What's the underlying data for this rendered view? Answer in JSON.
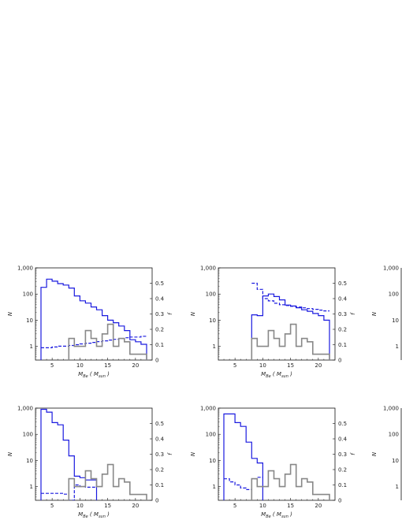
{
  "chart_data": [
    {
      "type": "step",
      "panel": "top-left",
      "xlabel": "M_Be ( M_sun )",
      "ylabel_left": "N",
      "ylabel_right": "f",
      "x_ticks": [
        "5",
        "10",
        "15",
        "20"
      ],
      "y_left_ticks": [
        "1",
        "10",
        "100",
        "1,000"
      ],
      "y_right_ticks": [
        "0",
        "0.1",
        "0.2",
        "0.3",
        "0.4",
        "0.5"
      ],
      "xlim": [
        2,
        23
      ],
      "ylim_left": [
        0.3,
        1000
      ],
      "ylim_right": [
        0,
        0.6
      ],
      "y_left_scale": "log",
      "bin_edges": [
        3,
        4,
        5,
        6,
        7,
        8,
        9,
        10,
        11,
        12,
        13,
        14,
        15,
        16,
        17,
        18,
        19,
        20,
        21,
        22
      ],
      "series": [
        {
          "style": "solid",
          "color": "#1a1adf",
          "axis": "left",
          "values": [
            180,
            370,
            310,
            250,
            220,
            170,
            85,
            55,
            45,
            32,
            25,
            15,
            10,
            8,
            6,
            4,
            1.8,
            1.5,
            1.2
          ]
        },
        {
          "style": "dashed",
          "color": "#1a1adf",
          "axis": "right",
          "values": [
            0.08,
            0.08,
            0.085,
            0.09,
            0.09,
            0.095,
            0.1,
            0.105,
            0.11,
            0.115,
            0.12,
            0.125,
            0.13,
            0.135,
            0.14,
            0.145,
            0.15,
            0.15,
            0.155
          ]
        },
        {
          "style": "solid",
          "color": "#888888",
          "axis": "left",
          "values": [
            null,
            null,
            null,
            null,
            null,
            2,
            1,
            1,
            4,
            2,
            1,
            3,
            7,
            1,
            2,
            1.5,
            0.5,
            0.5,
            0.5
          ]
        }
      ]
    },
    {
      "type": "step",
      "panel": "top-middle",
      "xlabel": "M_Be ( M_sun )",
      "ylabel_left": "N",
      "ylabel_right": "f",
      "x_ticks": [
        "5",
        "10",
        "15",
        "20"
      ],
      "y_left_ticks": [
        "1",
        "10",
        "100",
        "1,000"
      ],
      "y_right_ticks": [
        "0",
        "0.1",
        "0.2",
        "0.3",
        "0.4",
        "0.5"
      ],
      "xlim": [
        2,
        23
      ],
      "ylim_left": [
        0.3,
        1000
      ],
      "ylim_right": [
        0,
        0.6
      ],
      "y_left_scale": "log",
      "bin_edges": [
        8,
        9,
        10,
        11,
        12,
        13,
        14,
        15,
        16,
        17,
        18,
        19,
        20,
        21,
        22
      ],
      "series": [
        {
          "style": "solid",
          "color": "#1a1adf",
          "axis": "left",
          "values": [
            16,
            15,
            85,
            100,
            80,
            60,
            38,
            35,
            30,
            25,
            22,
            18,
            15,
            10
          ]
        },
        {
          "style": "dashed",
          "color": "#1a1adf",
          "axis": "right",
          "values": [
            0.5,
            0.46,
            0.4,
            0.385,
            0.37,
            0.36,
            0.355,
            0.35,
            0.345,
            0.34,
            0.335,
            0.33,
            0.325,
            0.32
          ]
        },
        {
          "style": "solid",
          "color": "#888888",
          "axis": "left",
          "values": [
            2,
            1,
            1,
            4,
            2,
            1,
            3,
            7,
            1,
            2,
            1.5,
            0.5,
            0.5,
            0.5
          ]
        }
      ]
    },
    {
      "type": "step",
      "panel": "bottom-left",
      "xlabel": "M_Be ( M_sun )",
      "ylabel_left": "N",
      "ylabel_right": "f",
      "x_ticks": [
        "5",
        "10",
        "15",
        "20"
      ],
      "y_left_ticks": [
        "1",
        "10",
        "100",
        "1,000"
      ],
      "y_right_ticks": [
        "0",
        "0.1",
        "0.2",
        "0.3",
        "0.4",
        "0.5"
      ],
      "xlim": [
        2,
        23
      ],
      "ylim_left": [
        0.3,
        1000
      ],
      "ylim_right": [
        0,
        0.6
      ],
      "y_left_scale": "log",
      "bin_edges": [
        3,
        4,
        5,
        6,
        7,
        8,
        9,
        10,
        11,
        12,
        13
      ],
      "series": [
        {
          "style": "solid",
          "color": "#1a1adf",
          "axis": "left",
          "values": [
            900,
            700,
            280,
            230,
            60,
            15,
            2.5,
            2.2,
            1.8,
            1.8
          ]
        },
        {
          "style": "dashed",
          "color": "#1a1adf",
          "axis": "right",
          "values": [
            0.045,
            0.045,
            0.045,
            0.045,
            0.04,
            0.0,
            0.1,
            0.09,
            0.085,
            0.085
          ]
        },
        {
          "style": "solid",
          "color": "#888888",
          "axis": "left",
          "values": [
            null,
            null,
            null,
            null,
            null,
            2,
            1,
            1,
            4,
            2,
            1,
            3,
            7,
            1,
            2,
            1.5,
            0.5,
            0.5,
            0.5
          ],
          "start": 3
        }
      ]
    },
    {
      "type": "step",
      "panel": "bottom-middle",
      "xlabel": "M_Be ( M_sun )",
      "ylabel_left": "N",
      "ylabel_right": "f",
      "x_ticks": [
        "5",
        "10",
        "15",
        "20"
      ],
      "y_left_ticks": [
        "1",
        "10",
        "100",
        "1,000"
      ],
      "y_right_ticks": [
        "0",
        "0.1",
        "0.2",
        "0.3",
        "0.4",
        "0.5"
      ],
      "xlim": [
        2,
        23
      ],
      "ylim_left": [
        0.3,
        1000
      ],
      "ylim_right": [
        0,
        0.6
      ],
      "y_left_scale": "log",
      "bin_edges": [
        3,
        4,
        5,
        6,
        7,
        8,
        9,
        10
      ],
      "series": [
        {
          "style": "solid",
          "color": "#1a1adf",
          "axis": "left",
          "values": [
            600,
            600,
            280,
            200,
            50,
            12,
            8
          ]
        },
        {
          "style": "dashed",
          "color": "#1a1adf",
          "axis": "right",
          "values": [
            0.14,
            0.12,
            0.1,
            0.08,
            0.07,
            0.14,
            0.15
          ]
        },
        {
          "style": "solid",
          "color": "#888888",
          "axis": "left",
          "values": [
            null,
            null,
            null,
            null,
            null,
            2,
            1,
            1,
            4,
            2,
            1,
            3,
            7,
            1,
            2,
            1.5,
            0.5,
            0.5,
            0.5
          ],
          "start": 3
        }
      ]
    }
  ],
  "partial_panels_right_edge": [
    {
      "panel": "top-right",
      "ylabel_left": "N",
      "y_left_ticks": [
        "1",
        "10",
        "100",
        "1,000"
      ]
    },
    {
      "panel": "bottom-right",
      "ylabel_left": "N",
      "y_left_ticks": [
        "1",
        "10",
        "100",
        "1,000"
      ]
    }
  ]
}
